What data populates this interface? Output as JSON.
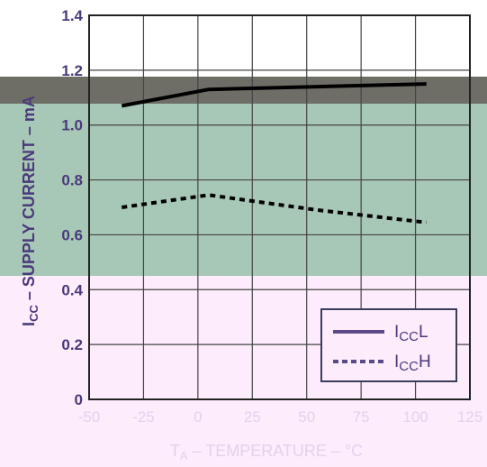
{
  "chart_data": {
    "type": "line",
    "title": "",
    "xlabel": {
      "main": "T",
      "sub": "A",
      "rest": " – TEMPERATURE – °C"
    },
    "ylabel": {
      "main": "I",
      "sub": "CC",
      "rest": " – SUPPLY CURRENT – mA"
    },
    "xlim": [
      -50,
      125
    ],
    "ylim": [
      0,
      1.4
    ],
    "x_ticks": [
      "-50",
      "-25",
      "0",
      "25",
      "50",
      "75",
      "100",
      "125"
    ],
    "y_ticks": [
      "0",
      "0.2",
      "0.4",
      "0.6",
      "0.8",
      "1.0",
      "1.2",
      "1.4"
    ],
    "grid": true,
    "legend_position": "bottom-right",
    "series": [
      {
        "name": {
          "main": "I",
          "sub": "CC",
          "suffix": "L"
        },
        "style": "solid",
        "x": [
          -35,
          5,
          55,
          105
        ],
        "y": [
          1.07,
          1.13,
          1.14,
          1.15
        ]
      },
      {
        "name": {
          "main": "I",
          "sub": "CC",
          "suffix": "H"
        },
        "style": "dotted",
        "x": [
          -35,
          5,
          55,
          105
        ],
        "y": [
          0.7,
          0.745,
          0.69,
          0.645
        ]
      }
    ],
    "colors": {
      "grid": "#444444",
      "band_dark": "#6f6e66",
      "band_green": "#a7c7b7",
      "band_pink": "#fcecfc",
      "series": "#000000",
      "y_text": "#4b3a7b",
      "x_text": "#e2d2ec",
      "legend_text": "#4b3a7b"
    }
  }
}
